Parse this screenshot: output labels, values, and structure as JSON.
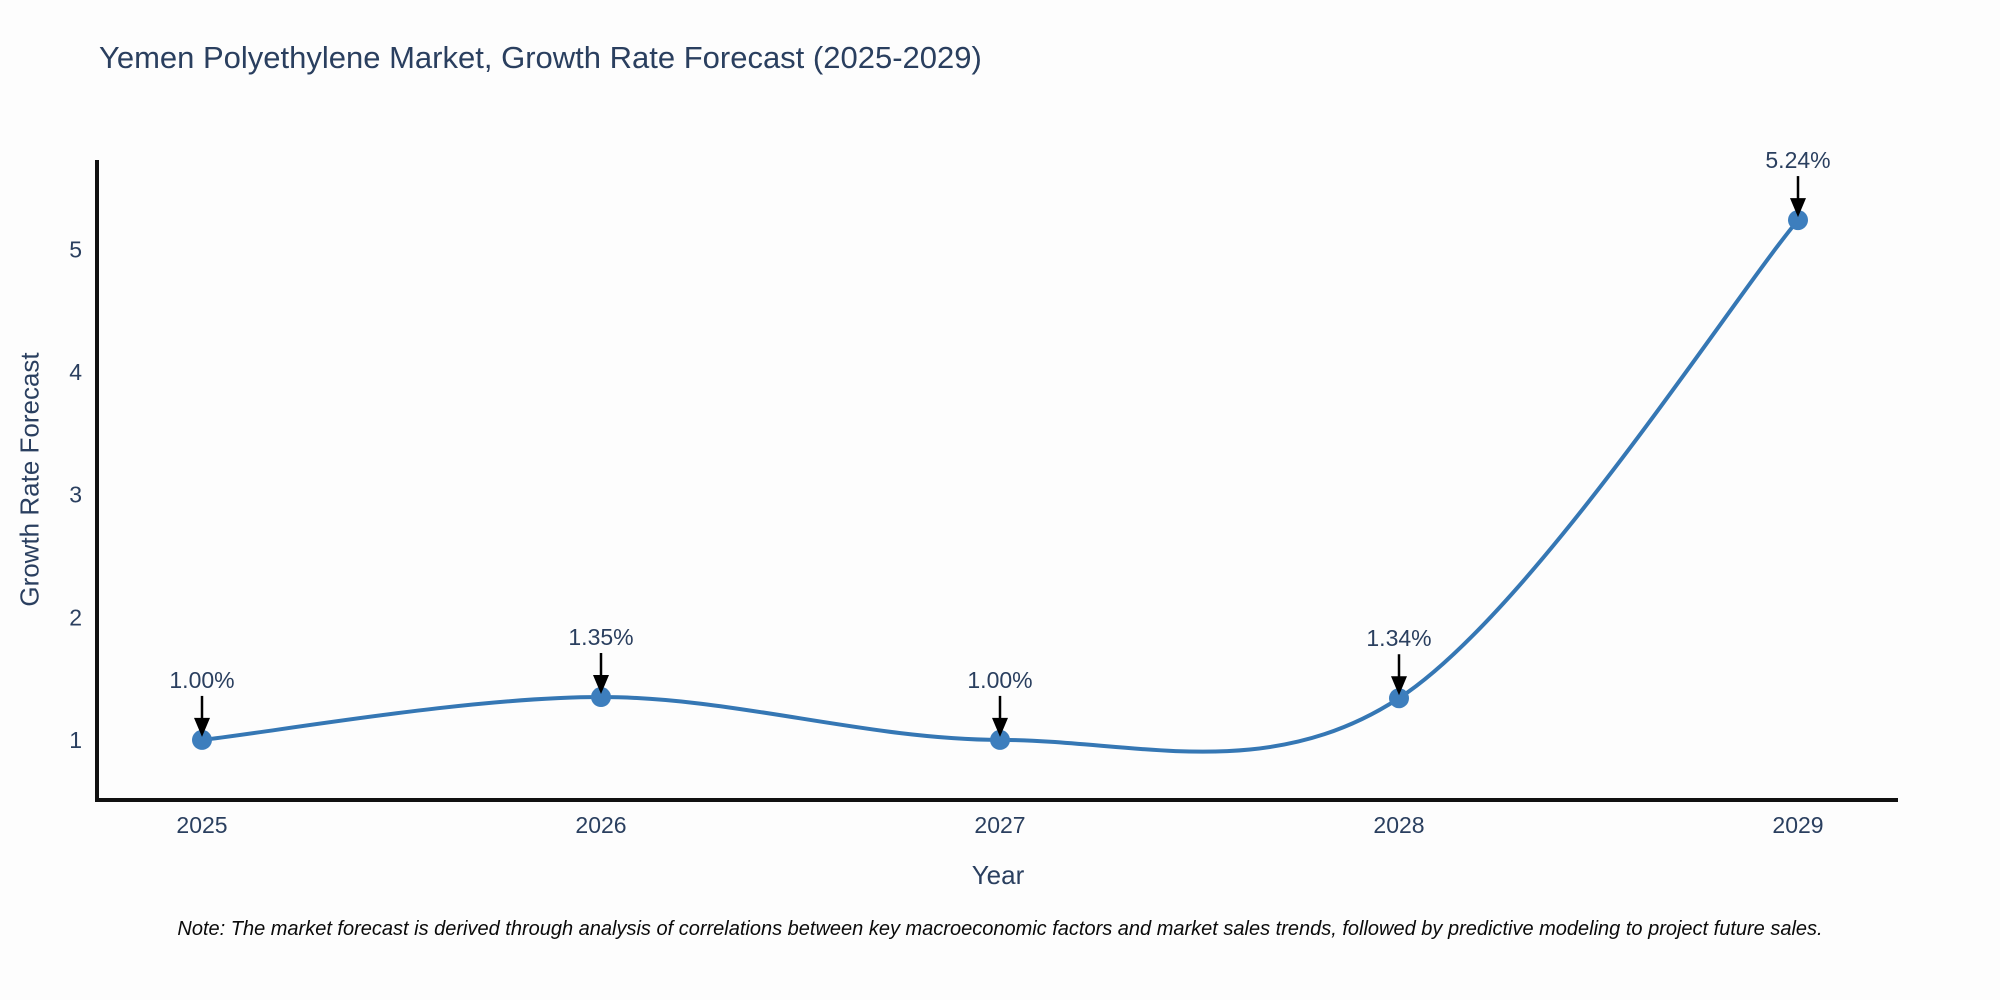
{
  "page": {
    "title": "Yemen Polyethylene Market, Growth Rate Forecast (2025-2029)",
    "note": "Note: The market forecast is derived through analysis of correlations between key macroeconomic factors and market sales trends, followed by predictive modeling to project future sales."
  },
  "chart_data": {
    "type": "line",
    "title": "Yemen Polyethylene Market, Growth Rate Forecast (2025-2029)",
    "xlabel": "Year",
    "ylabel": "Growth Rate Forecast",
    "x": [
      2025,
      2026,
      2027,
      2028,
      2029
    ],
    "values": [
      1.0,
      1.35,
      1.0,
      1.34,
      5.24
    ],
    "point_labels": [
      "1.00%",
      "1.35%",
      "1.00%",
      "1.34%",
      "5.24%"
    ],
    "yticks": [
      1,
      2,
      3,
      4,
      5
    ],
    "ylim": [
      0.51,
      5.73
    ],
    "line_shape": "spline",
    "grid": false,
    "legend": false,
    "colors": {
      "line": "#3577b4",
      "marker": "#3d7ebd",
      "axis": "#111111",
      "annotation_arrow": "#000000",
      "text": "#2a3f5f"
    }
  }
}
